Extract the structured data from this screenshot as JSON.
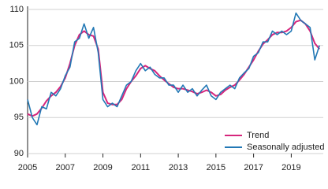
{
  "chart_data": {
    "type": "line",
    "x": [
      2005,
      2005.25,
      2005.5,
      2005.75,
      2006,
      2006.25,
      2006.5,
      2006.75,
      2007,
      2007.25,
      2007.5,
      2007.75,
      2008,
      2008.25,
      2008.5,
      2008.75,
      2009,
      2009.25,
      2009.5,
      2009.75,
      2010,
      2010.25,
      2010.5,
      2010.75,
      2011,
      2011.25,
      2011.5,
      2011.75,
      2012,
      2012.25,
      2012.5,
      2012.75,
      2013,
      2013.25,
      2013.5,
      2013.75,
      2014,
      2014.25,
      2014.5,
      2014.75,
      2015,
      2015.25,
      2015.5,
      2015.75,
      2016,
      2016.25,
      2016.5,
      2016.75,
      2017,
      2017.25,
      2017.5,
      2017.75,
      2018,
      2018.25,
      2018.5,
      2018.75,
      2019,
      2019.25,
      2019.5,
      2019.75,
      2020,
      2020.25,
      2020.5
    ],
    "series": [
      {
        "name": "Trend",
        "color": "#d6267c",
        "values": [
          95.5,
          95.2,
          95.5,
          96.3,
          97.3,
          98.0,
          98.5,
          99.3,
          100.5,
          102.5,
          105.0,
          106.5,
          107.0,
          106.5,
          106.3,
          104.5,
          98.5,
          97.0,
          96.8,
          96.8,
          97.5,
          99.0,
          100.0,
          100.8,
          101.8,
          102.2,
          101.8,
          101.5,
          100.8,
          100.2,
          99.7,
          99.2,
          99.0,
          99.0,
          98.8,
          98.6,
          98.3,
          98.5,
          98.8,
          98.5,
          98.0,
          98.2,
          98.8,
          99.2,
          99.5,
          100.2,
          101.0,
          102.0,
          103.0,
          104.2,
          105.2,
          105.8,
          106.5,
          106.8,
          106.8,
          107.0,
          107.5,
          108.3,
          108.5,
          108.0,
          107.0,
          105.3,
          104.5
        ]
      },
      {
        "name": "Seasonally adjusted",
        "color": "#2278b5",
        "values": [
          97.5,
          95.0,
          94.0,
          96.5,
          96.2,
          98.5,
          98.0,
          99.0,
          100.8,
          102.0,
          105.5,
          106.0,
          108.0,
          106.0,
          107.5,
          104.0,
          97.5,
          96.5,
          97.0,
          96.5,
          98.0,
          99.5,
          100.0,
          101.5,
          102.5,
          101.5,
          102.0,
          101.0,
          100.5,
          100.5,
          99.5,
          99.5,
          98.5,
          99.5,
          98.5,
          99.0,
          98.0,
          98.8,
          99.5,
          98.0,
          97.5,
          98.5,
          99.0,
          99.5,
          99.0,
          100.5,
          101.2,
          101.8,
          103.5,
          104.0,
          105.5,
          105.5,
          107.0,
          106.5,
          107.0,
          106.5,
          107.0,
          109.5,
          108.5,
          108.0,
          107.5,
          103.0,
          105.0
        ]
      }
    ],
    "xlim": [
      2005,
      2020.7
    ],
    "xticks": [
      2005,
      2007,
      2009,
      2011,
      2013,
      2015,
      2017,
      2019
    ],
    "ylim": [
      90,
      110
    ],
    "yticks": [
      90,
      95,
      100,
      105,
      110
    ],
    "grid": true,
    "legend": "lower right"
  }
}
